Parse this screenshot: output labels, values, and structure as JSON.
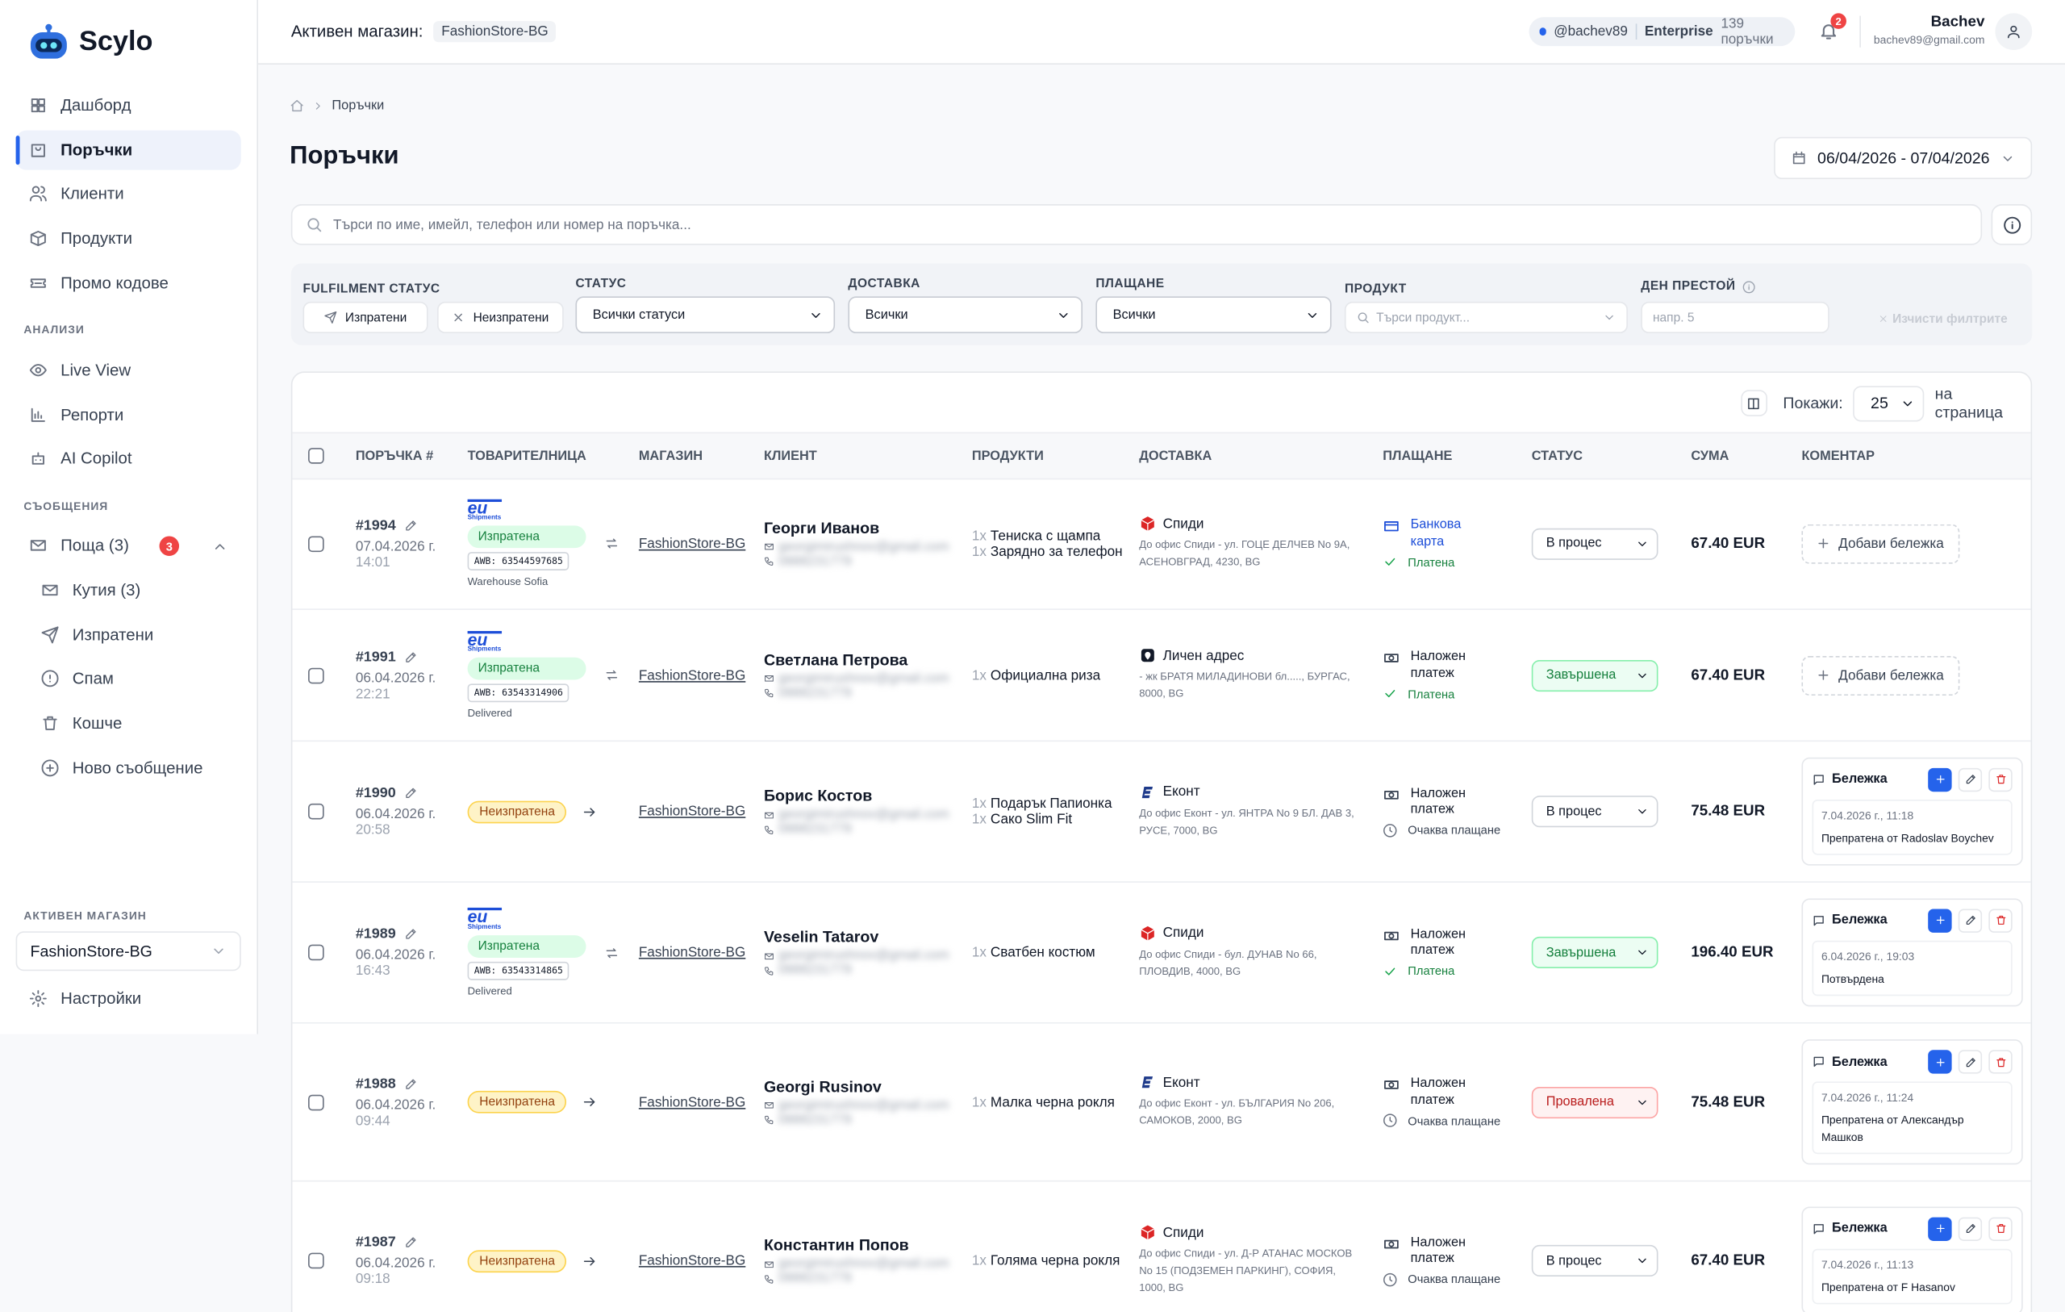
{
  "sidebar": {
    "brand": "Scylo",
    "nav": [
      "Дашборд",
      "Поръчки",
      "Клиенти",
      "Продукти",
      "Промо кодове"
    ],
    "analytics_title": "АНАЛИЗИ",
    "analytics": [
      "Live View",
      "Репорти",
      "AI Copilot"
    ],
    "messages_title": "СЪОБЩЕНИЯ",
    "mail": {
      "label": "Поща (3)",
      "badge": "3",
      "items": [
        "Кутия (3)",
        "Изпратени",
        "Спам",
        "Кошче",
        "Ново съобщение"
      ]
    },
    "store_title": "АКТИВЕН МАГАЗИН",
    "store": "FashionStore-BG",
    "settings": "Настройки"
  },
  "header": {
    "store_label": "Активен магазин:",
    "store": "FashionStore-BG",
    "handle": "@bachev89",
    "plan": "Enterprise",
    "orders": "139 поръчки",
    "notifications": "2",
    "user": "Bachev",
    "email": "bachev89@gmail.com"
  },
  "breadcrumb": "Поръчки",
  "title": "Поръчки",
  "date_range": "06/04/2026 - 07/04/2026",
  "search_placeholder": "Търси по име, имейл, телефон или номер на поръчка...",
  "filters": {
    "fulfilment": {
      "label": "FULFILMENT СТАТУС",
      "options": [
        "Изпратени",
        "Неизпратени"
      ]
    },
    "status": {
      "label": "СТАТУС",
      "value": "Всички статуси"
    },
    "delivery": {
      "label": "ДОСТАВКА",
      "value": "Всички"
    },
    "payment": {
      "label": "ПЛАЩАНЕ",
      "value": "Всички"
    },
    "product": {
      "label": "ПРОДУКТ",
      "placeholder": "Търси продукт..."
    },
    "idle": {
      "label": "ДЕН ПРЕСТОЙ",
      "placeholder": "напр. 5"
    },
    "clear": "Изчисти филтрите"
  },
  "table": {
    "show_label": "Покажи:",
    "page_size": "25",
    "per_page": "на страница",
    "columns": [
      "ПОРЪЧКА #",
      "ТОВАРИТЕЛНИЦА",
      "МАГАЗИН",
      "КЛИЕНТ",
      "ПРОДУКТИ",
      "ДОСТАВКА",
      "ПЛАЩАНЕ",
      "СТАТУС",
      "СУМА",
      "КОМЕНТАР"
    ],
    "rows": [
      {
        "number": "#1994",
        "date": "07.04.2026 г.",
        "time": "14:01",
        "fulfilment": "Изпратена",
        "carrier_logo": [
          "eu",
          "Shipments"
        ],
        "awb": "AWB: 63544597685",
        "awb_note": "Warehouse Sofia",
        "store": "FashionStore-BG",
        "client": "Георги Иванов",
        "email": "georgimirushnov@gmail.com",
        "phone": "0888231779",
        "products": [
          {
            "qty": "1x",
            "name": "Тениска с щампа"
          },
          {
            "qty": "1x",
            "name": "Зарядно за телефон"
          }
        ],
        "delivery": {
          "icon": "speedy",
          "name": "Спиди",
          "address": "До офис Спиди - ул. ГОЦЕ ДЕЛЧЕВ No 9А, АСЕНОВГРАД, 4230, BG"
        },
        "payment": {
          "icon": "card",
          "method": "Банкова карта",
          "state": "paid",
          "status": "Платена"
        },
        "status": "В процес",
        "status_tone": "neutral",
        "total": "67.40 EUR",
        "comment": {
          "button": "Добави бележка"
        }
      },
      {
        "number": "#1991",
        "date": "06.04.2026 г.",
        "time": "22:21",
        "fulfilment": "Изпратена",
        "carrier_logo": [
          "eu",
          "Shipments"
        ],
        "awb": "AWB: 63543314906",
        "awb_note": "Delivered",
        "store": "FashionStore-BG",
        "client": "Светлана Петрова",
        "email": "georgimirushnov@gmail.com",
        "phone": "0888231779",
        "products": [
          {
            "qty": "1x",
            "name": "Официална риза"
          }
        ],
        "delivery": {
          "icon": "home",
          "name": "Личен адрес",
          "address": "- жк БРАТЯ МИЛАДИНОВИ бл....., БУРГАС, 8000, BG"
        },
        "payment": {
          "icon": "cash",
          "method": "Наложен платеж",
          "state": "paid",
          "status": "Платена"
        },
        "status": "Завършена",
        "status_tone": "success",
        "total": "67.40 EUR",
        "comment": {
          "button": "Добави бележка"
        }
      },
      {
        "number": "#1990",
        "date": "06.04.2026 г.",
        "time": "20:58",
        "fulfilment": "Неизпратена",
        "store": "FashionStore-BG",
        "client": "Борис Костов",
        "email": "georgimirushnov@gmail.com",
        "phone": "0888231779",
        "products": [
          {
            "qty": "1x",
            "name": "Подарък Папионка"
          },
          {
            "qty": "1x",
            "name": "Сако Slim Fit"
          }
        ],
        "delivery": {
          "icon": "econt",
          "name": "Еконт",
          "address": "До офис Еконт - ул. ЯНТРА No 9 БЛ. ДАВ 3, РУСЕ, 7000, BG"
        },
        "payment": {
          "icon": "cash",
          "method": "Наложен платеж",
          "state": "pending",
          "status": "Очаква плащане"
        },
        "status": "В процес",
        "status_tone": "neutral",
        "total": "75.48 EUR",
        "comment": {
          "title": "Бележка",
          "date": "7.04.2026 г., 11:18",
          "text": "Препратена от Radoslav Boychev"
        }
      },
      {
        "number": "#1989",
        "date": "06.04.2026 г.",
        "time": "16:43",
        "fulfilment": "Изпратена",
        "carrier_logo": [
          "eu",
          "Shipments"
        ],
        "awb": "AWB: 63543314865",
        "awb_note": "Delivered",
        "store": "FashionStore-BG",
        "client": "Veselin Tatarov",
        "email": "georgimirushnov@gmail.com",
        "phone": "0888231779",
        "products": [
          {
            "qty": "1x",
            "name": "Сватбен костюм"
          }
        ],
        "delivery": {
          "icon": "speedy",
          "name": "Спиди",
          "address": "До офис Спиди - бул. ДУНАВ No 66, ПЛОВДИВ, 4000, BG"
        },
        "payment": {
          "icon": "cash",
          "method": "Наложен платеж",
          "state": "paid",
          "status": "Платена"
        },
        "status": "Завършена",
        "status_tone": "success",
        "total": "196.40 EUR",
        "comment": {
          "title": "Бележка",
          "date": "6.04.2026 г., 19:03",
          "text": "Потвърдена"
        }
      },
      {
        "number": "#1988",
        "date": "06.04.2026 г.",
        "time": "09:44",
        "fulfilment": "Неизпратена",
        "store": "FashionStore-BG",
        "client": "Georgi Rusinov",
        "email": "georgimirushnov@gmail.com",
        "phone": "0888231779",
        "products": [
          {
            "qty": "1x",
            "name": "Малка черна рокля"
          }
        ],
        "delivery": {
          "icon": "econt",
          "name": "Еконт",
          "address": "До офис Еконт - ул. БЪЛГАРИЯ No 206, САМОКОВ, 2000, BG"
        },
        "payment": {
          "icon": "cash",
          "method": "Наложен платеж",
          "state": "pending",
          "status": "Очаква плащане"
        },
        "status": "Провалена",
        "status_tone": "danger",
        "total": "75.48 EUR",
        "comment": {
          "title": "Бележка",
          "date": "7.04.2026 г., 11:24",
          "text": "Препратена от Александър Машков"
        }
      },
      {
        "number": "#1987",
        "date": "06.04.2026 г.",
        "time": "09:18",
        "fulfilment": "Неизпратена",
        "store": "FashionStore-BG",
        "client": "Константин Попов",
        "email": "georgimirushnov@gmail.com",
        "phone": "0888231779",
        "products": [
          {
            "qty": "1x",
            "name": "Голяма черна рокля"
          }
        ],
        "delivery": {
          "icon": "speedy",
          "name": "Спиди",
          "address": "До офис Спиди - ул. Д-Р АТАНАС МОСКОВ No 15 (ПОДЗЕМЕН ПАРКИНГ), СОФИЯ, 1000, BG"
        },
        "payment": {
          "icon": "cash",
          "method": "Наложен платеж",
          "state": "pending",
          "status": "Очаква плащане"
        },
        "status": "В процес",
        "status_tone": "neutral",
        "total": "67.40 EUR",
        "comment": {
          "title": "Бележка",
          "date": "7.04.2026 г., 11:13",
          "text": "Препратена от F Hasanov"
        }
      }
    ]
  }
}
